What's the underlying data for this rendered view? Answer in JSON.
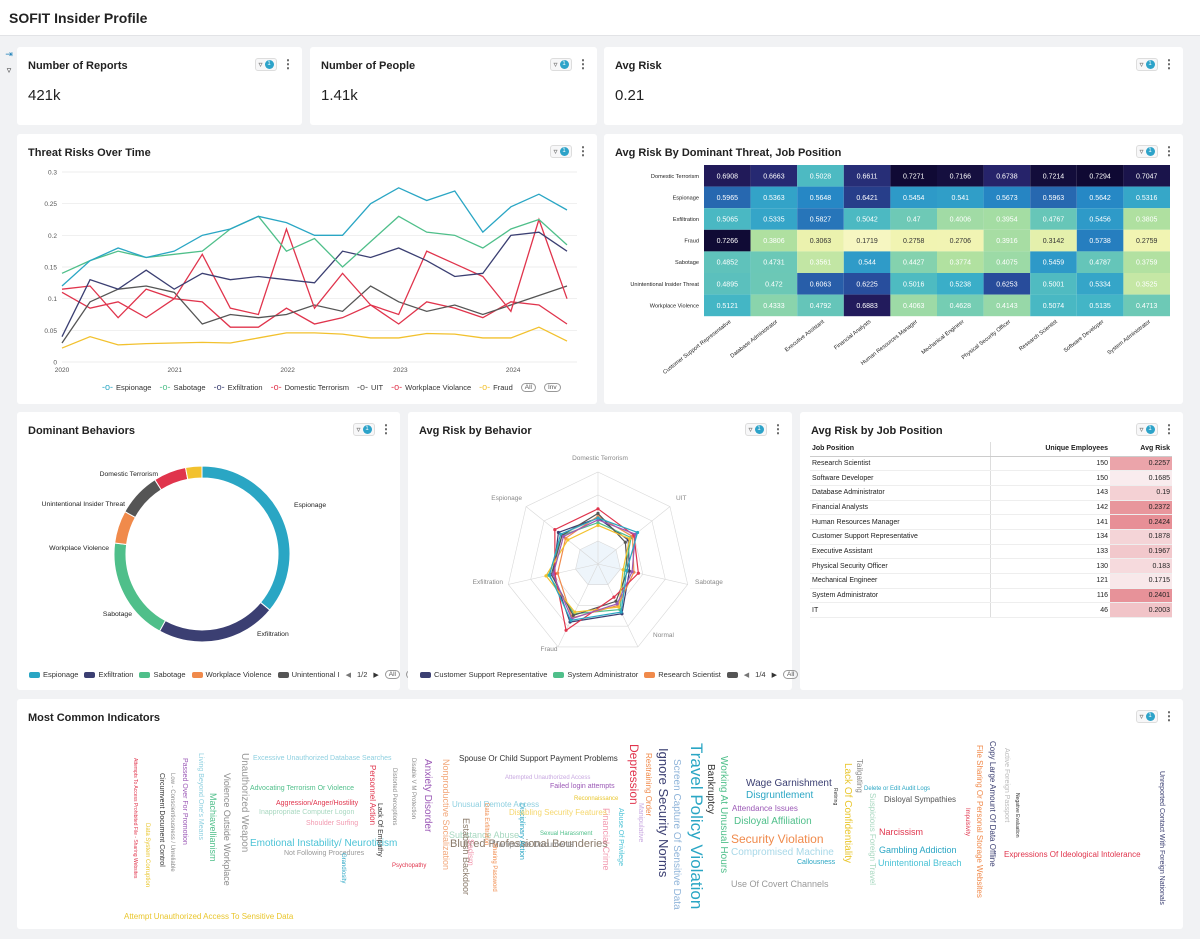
{
  "header": {
    "title": "SOFIT Insider Profile"
  },
  "filter_badge": "1",
  "kpis": [
    {
      "title": "Number of Reports",
      "value": "421k"
    },
    {
      "title": "Number of People",
      "value": "1.41k"
    },
    {
      "title": "Avg Risk",
      "value": "0.21"
    }
  ],
  "line_chart": {
    "title": "Threat Risks Over Time",
    "legend_pills": [
      "All",
      "Inv"
    ]
  },
  "heatmap": {
    "title": "Avg Risk By Dominant Threat, Job Position"
  },
  "donut": {
    "title": "Dominant Behaviors",
    "page": "1/2",
    "legend_pills": [
      "All",
      "Inv"
    ]
  },
  "radar": {
    "title": "Avg Risk by Behavior",
    "page": "1/4",
    "legend_pills": [
      "All",
      "Inv"
    ]
  },
  "job_table": {
    "title": "Avg Risk by Job Position",
    "headers": [
      "Job Position",
      "Unique Employees",
      "Avg Risk"
    ],
    "rows": [
      [
        "Research Scientist",
        "150",
        "0.2257"
      ],
      [
        "Software Developer",
        "150",
        "0.1685"
      ],
      [
        "Database Administrator",
        "143",
        "0.19"
      ],
      [
        "Financial Analysts",
        "142",
        "0.2372"
      ],
      [
        "Human Resources Manager",
        "141",
        "0.2424"
      ],
      [
        "Customer Support Representative",
        "134",
        "0.1878"
      ],
      [
        "Executive Assistant",
        "133",
        "0.1967"
      ],
      [
        "Physical Security Officer",
        "130",
        "0.183"
      ],
      [
        "Mechanical Engineer",
        "121",
        "0.1715"
      ],
      [
        "System Administrator",
        "116",
        "0.2401"
      ],
      [
        "IT",
        "46",
        "0.2003"
      ]
    ]
  },
  "wordcloud": {
    "title": "Most Common Indicators",
    "words": [
      {
        "t": "Travel Policy Violation",
        "c": "#2aa6c4",
        "s": 17,
        "v": true
      },
      {
        "t": "Ignore Security Norms",
        "c": "#3b3f72",
        "s": 13,
        "v": true
      },
      {
        "t": "Security Violation",
        "c": "#f08a4b",
        "s": 12,
        "v": false
      },
      {
        "t": "Blurred Professional Bounderies",
        "c": "#8a7a6a",
        "s": 11,
        "v": false
      },
      {
        "t": "Depression",
        "c": "#e0344c",
        "s": 12,
        "v": true
      },
      {
        "t": "Emotional Instability/ Neuroticism",
        "c": "#4cc3d6",
        "s": 10,
        "v": false
      },
      {
        "t": "Screen Capture Of Sensitive Data",
        "c": "#8fb4d9",
        "s": 10,
        "v": true
      },
      {
        "t": "Wage Garnishment",
        "c": "#3b3f72",
        "s": 10,
        "v": false
      },
      {
        "t": "Disgruntlement",
        "c": "#2aa6c4",
        "s": 10,
        "v": false
      },
      {
        "t": "Disloyal Affiliation",
        "c": "#4fbf8a",
        "s": 10,
        "v": false
      },
      {
        "t": "Compromised Machine",
        "c": "#a8d8e8",
        "s": 10,
        "v": false
      },
      {
        "t": "Working At Unusual Hours",
        "c": "#4fbf8a",
        "s": 10,
        "v": true
      },
      {
        "t": "Bankruptcy",
        "c": "#333333",
        "s": 10,
        "v": true
      },
      {
        "t": "Lack Of Confidentiality",
        "c": "#e9c62c",
        "s": 10,
        "v": true
      },
      {
        "t": "Unauthorized Weapon",
        "c": "#999999",
        "s": 10,
        "v": true
      },
      {
        "t": "Violence Outside Workplace",
        "c": "#8a8a8a",
        "s": 9,
        "v": true
      },
      {
        "t": "Machiavellianism",
        "c": "#4fbf8a",
        "s": 9,
        "v": true
      },
      {
        "t": "Anxiety Disorder",
        "c": "#9b59b6",
        "s": 10,
        "v": true
      },
      {
        "t": "Nonproductive Socialization",
        "c": "#f2a77a",
        "s": 9,
        "v": true
      },
      {
        "t": "Spouse Or Child Support Payment Problems",
        "c": "#333333",
        "s": 8,
        "v": false
      },
      {
        "t": "Substance Abuse",
        "c": "#a8d8c0",
        "s": 9,
        "v": false
      },
      {
        "t": "Manipulate Documents",
        "c": "#8a8a8a",
        "s": 8,
        "v": false
      },
      {
        "t": "Establish Backdoor",
        "c": "#8a7a6a",
        "s": 9,
        "v": true
      },
      {
        "t": "Disciplinary Action",
        "c": "#2aa6c4",
        "s": 7,
        "v": true
      },
      {
        "t": "Financial Crime",
        "c": "#f29ab0",
        "s": 9,
        "v": true
      },
      {
        "t": "Gambling Addiction",
        "c": "#2aa6c4",
        "s": 9,
        "v": false
      },
      {
        "t": "Unintentional Breach",
        "c": "#4cc3d6",
        "s": 9,
        "v": false
      },
      {
        "t": "Narcissism",
        "c": "#e0344c",
        "s": 9,
        "v": false
      },
      {
        "t": "Use Of Covert Channels",
        "c": "#999999",
        "s": 9,
        "v": false
      },
      {
        "t": "Personnel Action",
        "c": "#e0344c",
        "s": 8,
        "v": true
      },
      {
        "t": "Lack Of Empathy",
        "c": "#333333",
        "s": 7,
        "v": true
      },
      {
        "t": "Passed Over For Promotion",
        "c": "#9b59b6",
        "s": 7,
        "v": true
      },
      {
        "t": "Living Beyond One's Means",
        "c": "#8fd0e0",
        "s": 7,
        "v": true
      },
      {
        "t": "Circumvent Document Control",
        "c": "#333333",
        "s": 7,
        "v": true
      },
      {
        "t": "Attendance Issues",
        "c": "#9b59b6",
        "s": 8,
        "v": false
      },
      {
        "t": "Unusual Remote Access",
        "c": "#8fd0e0",
        "s": 8,
        "v": false
      },
      {
        "t": "Disabling Security Features",
        "c": "#f5d76e",
        "s": 8,
        "v": false
      },
      {
        "t": "Disloyal Sympathies",
        "c": "#555555",
        "s": 8,
        "v": false
      },
      {
        "t": "Tailgating",
        "c": "#8a8a8a",
        "s": 8,
        "v": true
      },
      {
        "t": "Suspicious Foreign Travel",
        "c": "#a8d8c0",
        "s": 8,
        "v": true
      },
      {
        "t": "File Sharing Or Personal Storage Websites",
        "c": "#f08a4b",
        "s": 8,
        "v": true
      },
      {
        "t": "Copy Large Amount Of Data Offline",
        "c": "#3b3f72",
        "s": 8,
        "v": true
      },
      {
        "t": "Unreported Contact With Foreign Nationals",
        "c": "#3b3f72",
        "s": 7,
        "v": true
      },
      {
        "t": "Expressions Of Ideological Intolerance",
        "c": "#e0344c",
        "s": 8,
        "v": false
      },
      {
        "t": "Attempt Unauthorized Access To Sensitive Data",
        "c": "#e9c62c",
        "s": 8,
        "v": false
      },
      {
        "t": "Excessive Unauthorized Database Searches",
        "c": "#8fd0e0",
        "s": 7,
        "v": false
      },
      {
        "t": "Advocating Terrorism Or Violence",
        "c": "#4fbf8a",
        "s": 7,
        "v": false
      },
      {
        "t": "Aggression/Anger/Hostility",
        "c": "#e0344c",
        "s": 7,
        "v": false
      },
      {
        "t": "Shoulder Surfing",
        "c": "#f29ab0",
        "s": 7,
        "v": false
      },
      {
        "t": "Inappropriate Computer Logon",
        "c": "#a8d8c0",
        "s": 7,
        "v": false
      },
      {
        "t": "Not Following Procedures",
        "c": "#999999",
        "s": 7,
        "v": false
      },
      {
        "t": "Grandiosity",
        "c": "#2aa6c4",
        "s": 6,
        "v": true
      },
      {
        "t": "Attempted Unauthorized Access",
        "c": "#c8a8e0",
        "s": 6,
        "v": false
      },
      {
        "t": "Failed login attempts",
        "c": "#9b59b6",
        "s": 7,
        "v": false
      },
      {
        "t": "Abuse Of Privilege",
        "c": "#4cc3d6",
        "s": 7,
        "v": true
      },
      {
        "t": "Manipulative",
        "c": "#c8a8e0",
        "s": 7,
        "v": true
      },
      {
        "t": "Restraining Order",
        "c": "#f08a4b",
        "s": 8,
        "v": true
      },
      {
        "t": "Sharing Password",
        "c": "#f08a4b",
        "s": 6,
        "v": true
      },
      {
        "t": "Callousness",
        "c": "#2aa6c4",
        "s": 7,
        "v": false
      },
      {
        "t": "Delete or Edit Audit Logs",
        "c": "#2aa6c4",
        "s": 6,
        "v": false
      },
      {
        "t": "Reconnaissance",
        "c": "#e9c62c",
        "s": 6,
        "v": false
      },
      {
        "t": "Sexual Harassment",
        "c": "#4fbf8a",
        "s": 6,
        "v": false
      },
      {
        "t": "Data Exfiltration",
        "c": "#f08a4b",
        "s": 6,
        "v": true
      },
      {
        "t": "Data System Corruption",
        "c": "#e9c62c",
        "s": 6,
        "v": true
      },
      {
        "t": "Attempts To Access Prohibited File - Sharing Websites",
        "c": "#e0344c",
        "s": 5,
        "v": true
      },
      {
        "t": "Low - Conscientiousness / Unreliable",
        "c": "#8a8a8a",
        "s": 6,
        "v": true
      },
      {
        "t": "Active Foreign Passport",
        "c": "#bbbbbb",
        "s": 7,
        "v": true
      },
      {
        "t": "Negative Evaluation",
        "c": "#333333",
        "s": 5,
        "v": true
      },
      {
        "t": "Retiring",
        "c": "#333333",
        "s": 5,
        "v": true
      },
      {
        "t": "Impulsivity",
        "c": "#e0344c",
        "s": 6,
        "v": true
      },
      {
        "t": "Psychopathy",
        "c": "#e0344c",
        "s": 6,
        "v": false
      },
      {
        "t": "Sadism",
        "c": "#f29ab0",
        "s": 8,
        "v": true
      },
      {
        "t": "Disable V M Protection",
        "c": "#8a8a8a",
        "s": 6,
        "v": true
      },
      {
        "t": "Distorted Perceptions",
        "c": "#8a8a8a",
        "s": 6,
        "v": true
      }
    ]
  }
}
